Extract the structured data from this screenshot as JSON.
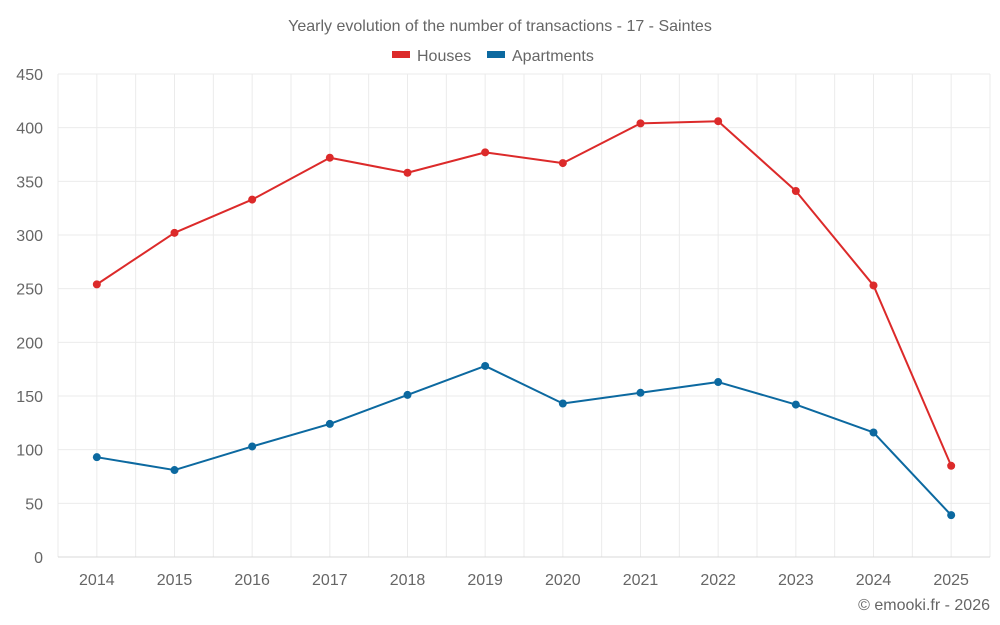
{
  "chart_data": {
    "type": "line",
    "title": "Yearly evolution of the number of transactions - 17 - Saintes",
    "xlabel": "",
    "ylabel": "",
    "categories": [
      "2014",
      "2015",
      "2016",
      "2017",
      "2018",
      "2019",
      "2020",
      "2021",
      "2022",
      "2023",
      "2024",
      "2025"
    ],
    "ylim": [
      0,
      450
    ],
    "yticks": [
      0,
      50,
      100,
      150,
      200,
      250,
      300,
      350,
      400,
      450
    ],
    "grid": true,
    "legend_position": "top-center",
    "series": [
      {
        "name": "Houses",
        "color": "#dc2a2a",
        "values": [
          254,
          302,
          333,
          372,
          358,
          377,
          367,
          404,
          406,
          341,
          253,
          85
        ]
      },
      {
        "name": "Apartments",
        "color": "#0c69a0",
        "values": [
          93,
          81,
          103,
          124,
          151,
          178,
          143,
          153,
          163,
          142,
          116,
          39
        ]
      }
    ],
    "credit": "© emooki.fr - 2026"
  }
}
